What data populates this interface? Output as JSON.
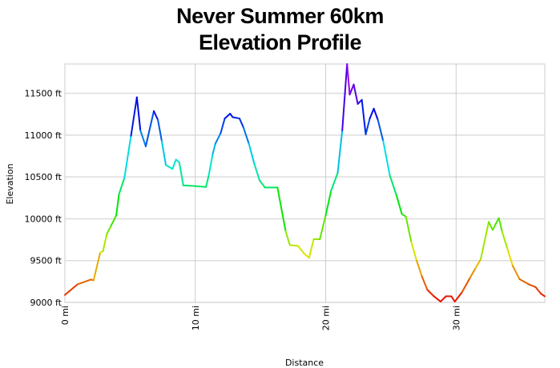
{
  "chart_data": {
    "type": "line",
    "title_line1": "Never Summer 60km",
    "title_line2": "Elevation Profile",
    "xlabel": "Distance",
    "ylabel": "Elevation",
    "xlim": [
      0,
      36.8
    ],
    "ylim": [
      9000,
      11850
    ],
    "x_ticks": [
      0,
      10,
      20,
      30
    ],
    "x_tick_labels": [
      "0 mi",
      "10 mi",
      "20 mi",
      "30 mi"
    ],
    "y_ticks": [
      9000,
      9500,
      10000,
      10500,
      11000,
      11500
    ],
    "y_tick_labels": [
      "9000 ft",
      "9500 ft",
      "10000 ft",
      "10500 ft",
      "11000 ft",
      "11500 ft"
    ],
    "grid": true,
    "color_by": "elevation (red low → magenta high)",
    "series": [
      {
        "x": [
          0,
          0.97,
          1.99,
          2.2,
          2.71,
          2.92,
          3.22,
          3.53,
          3.94,
          4.15,
          4.56,
          5.07,
          5.52,
          5.79,
          6.2,
          6.82,
          7.13,
          7.43,
          7.74,
          8.25,
          8.52,
          8.77,
          9.08,
          10,
          10.82,
          11.03,
          11.33,
          11.54,
          11.95,
          12.26,
          12.67,
          12.87,
          13.39,
          13.7,
          14.11,
          14.52,
          14.93,
          15.34,
          16.3,
          16.93,
          17.25,
          17.87,
          18.36,
          18.73,
          19.08,
          19.55,
          20,
          20.41,
          20.92,
          21.27,
          21.64,
          21.84,
          22.15,
          22.46,
          22.77,
          23.07,
          23.38,
          23.69,
          24,
          24.41,
          24.92,
          25.43,
          25.84,
          26.15,
          26.56,
          26.97,
          27.38,
          27.79,
          28.3,
          28.81,
          29.22,
          29.63,
          29.9,
          30.45,
          31.07,
          31.48,
          31.89,
          32.5,
          32.81,
          33.01,
          33.28,
          33.52,
          33.93,
          34.34,
          34.86,
          35.57,
          36.09,
          36.5,
          36.8
        ],
        "y": [
          9089,
          9216,
          9273,
          9263,
          9596,
          9612,
          9818,
          9914,
          10041,
          10294,
          10485,
          10992,
          11452,
          11056,
          10866,
          11287,
          11183,
          10929,
          10643,
          10596,
          10707,
          10675,
          10399,
          10390,
          10380,
          10517,
          10770,
          10897,
          11024,
          11199,
          11256,
          11214,
          11199,
          11088,
          10897,
          10659,
          10459,
          10374,
          10374,
          9850,
          9685,
          9676,
          9581,
          9533,
          9755,
          9755,
          10041,
          10333,
          10548,
          11056,
          11849,
          11484,
          11605,
          11373,
          11421,
          11008,
          11199,
          11316,
          11183,
          10929,
          10516,
          10279,
          10056,
          10025,
          9723,
          9501,
          9311,
          9152,
          9073,
          9010,
          9073,
          9073,
          9010,
          9121,
          9295,
          9406,
          9517,
          9961,
          9866,
          9930,
          10009,
          9850,
          9644,
          9438,
          9279,
          9216,
          9184,
          9105,
          9073
        ]
      }
    ]
  }
}
